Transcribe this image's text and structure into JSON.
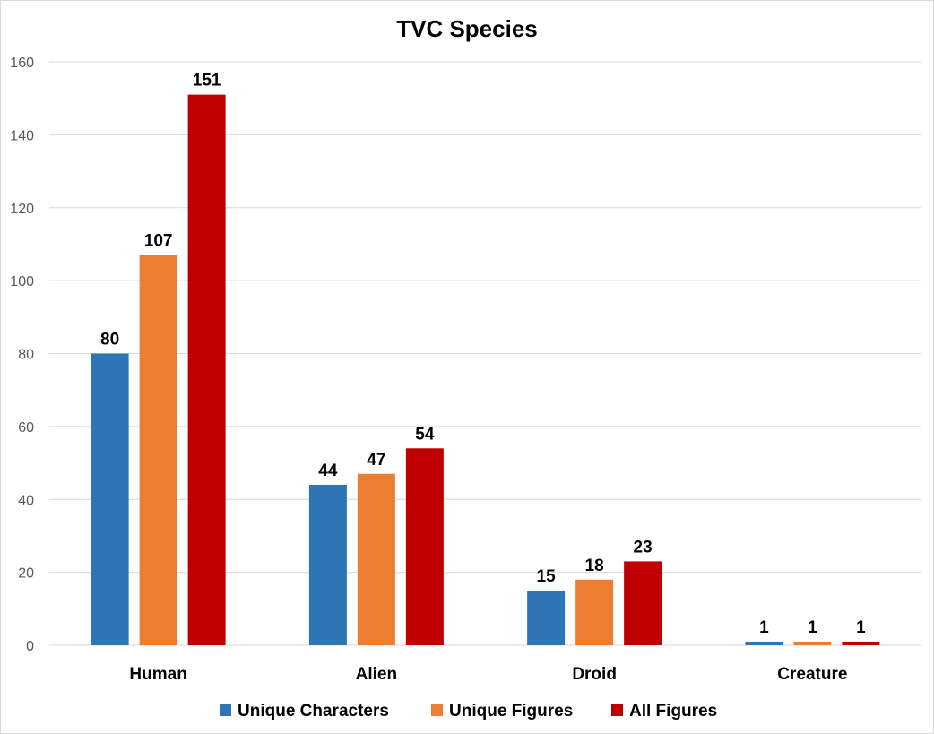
{
  "chart_data": {
    "type": "bar",
    "title": "TVC Species",
    "xlabel": "",
    "ylabel": "",
    "categories": [
      "Human",
      "Alien",
      "Droid",
      "Creature"
    ],
    "series": [
      {
        "name": "Unique Characters",
        "color": "#2e75b6",
        "values": [
          80,
          44,
          15,
          1
        ]
      },
      {
        "name": "Unique Figures",
        "color": "#ed7d31",
        "values": [
          107,
          47,
          18,
          1
        ]
      },
      {
        "name": "All Figures",
        "color": "#c00000",
        "values": [
          151,
          54,
          23,
          1
        ]
      }
    ],
    "ylim": [
      0,
      160
    ],
    "yticks": [
      0,
      20,
      40,
      60,
      80,
      100,
      120,
      140,
      160
    ],
    "grid": true,
    "legend": "bottom",
    "data_labels": true
  }
}
